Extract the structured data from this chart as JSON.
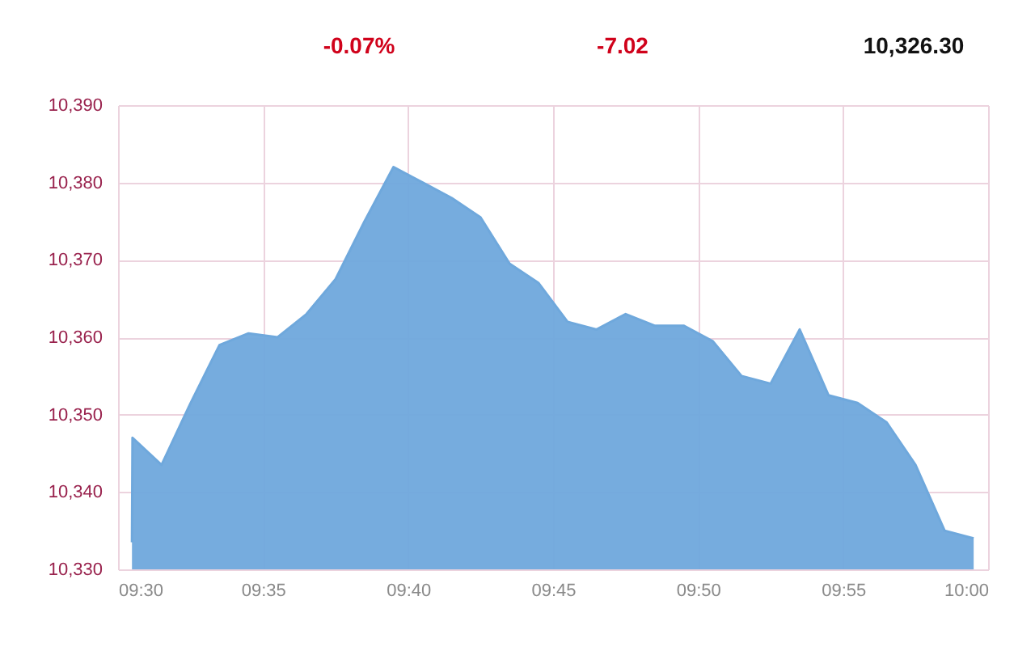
{
  "chart_data": {
    "type": "area",
    "annotations": [
      "-0.07%",
      "-7.02",
      "10,326.30"
    ],
    "x": [
      9.508,
      9.5083,
      9.525,
      9.5417,
      9.5583,
      9.575,
      9.5917,
      9.6083,
      9.625,
      9.6417,
      9.6583,
      9.675,
      9.6917,
      9.7083,
      9.725,
      9.7417,
      9.7583,
      9.775,
      9.7917,
      9.8083,
      9.825,
      9.8417,
      9.8583,
      9.875,
      9.8917,
      9.9083,
      9.925,
      9.9417,
      9.9583,
      9.975,
      9.9917
    ],
    "values": [
      10333.5,
      10347,
      10343.5,
      10351.5,
      10359,
      10360.5,
      10360,
      10363,
      10367.5,
      10375,
      10382,
      10380,
      10378,
      10375.5,
      10369.5,
      10367,
      10362,
      10361,
      10363,
      10361.5,
      10361.5,
      10359.5,
      10355,
      10354,
      10361,
      10352.5,
      10351.5,
      10349,
      10343.5,
      10335,
      10334
    ],
    "color": "#6fa8dc",
    "xlim": [
      9.5,
      10.0
    ],
    "xticks": [
      {
        "value": 9.5,
        "label": "09:30"
      },
      {
        "value": 9.5833,
        "label": "09:35"
      },
      {
        "value": 9.6667,
        "label": "09:40"
      },
      {
        "value": 9.75,
        "label": "09:45"
      },
      {
        "value": 9.8333,
        "label": "09:50"
      },
      {
        "value": 9.9167,
        "label": "09:55"
      },
      {
        "value": 10.0,
        "label": "10:00"
      }
    ],
    "ylim": [
      10330,
      10390
    ],
    "yticks": [
      {
        "value": 10330,
        "label": "10,330"
      },
      {
        "value": 10340,
        "label": "10,340"
      },
      {
        "value": 10350,
        "label": "10,350"
      },
      {
        "value": 10360,
        "label": "10,360"
      },
      {
        "value": 10370,
        "label": "10,370"
      },
      {
        "value": 10380,
        "label": "10,380"
      },
      {
        "value": 10390,
        "label": "10,390"
      }
    ],
    "grid": true
  }
}
